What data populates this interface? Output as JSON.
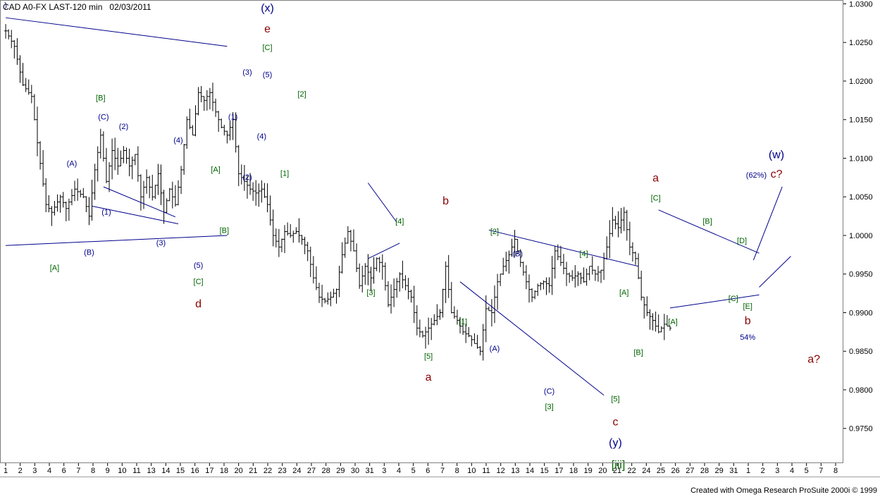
{
  "header": {
    "symbol": "CAD A0-FX LAST-120 min",
    "date": "02/03/2011"
  },
  "footer": {
    "credit": "Created with Omega Research ProSuite 2000i © 1999"
  },
  "chart_data": {
    "type": "bar",
    "title": "CAD A0-FX LAST-120 min 02/03/2011",
    "xlabel": "",
    "ylabel": "",
    "ylim": [
      0.9705,
      1.0305
    ],
    "yticks": [
      "1.0300",
      "1.0250",
      "1.0200",
      "1.0150",
      "1.0100",
      "1.0050",
      "1.0000",
      "0.9950",
      "0.9900",
      "0.9850",
      "0.9800",
      "0.9750"
    ],
    "x_tick_labels": [
      "1",
      "2",
      "3",
      "4",
      "6",
      "7",
      "8",
      "9",
      "10",
      "11",
      "13",
      "14",
      "15",
      "16",
      "17",
      "18",
      "20",
      "21",
      "22",
      "23",
      "24",
      "27",
      "28",
      "29",
      "30",
      "31",
      "3",
      "4",
      "5",
      "6",
      "7",
      "8",
      "10",
      "11",
      "12",
      "13",
      "14",
      "15",
      "17",
      "18",
      "19",
      "20",
      "21",
      "22",
      "24",
      "25",
      "26",
      "27",
      "28",
      "29",
      "31",
      "1",
      "2",
      "3",
      "4",
      "5",
      "7",
      "8"
    ],
    "price_path": [
      [
        0,
        1.0265
      ],
      [
        3,
        1.0245
      ],
      [
        6,
        1.0195
      ],
      [
        9,
        1.018
      ],
      [
        11,
        1.012
      ],
      [
        14,
        1.004
      ],
      [
        16,
        1.003
      ],
      [
        19,
        1.005
      ],
      [
        21,
        1.0035
      ],
      [
        24,
        1.006
      ],
      [
        27,
        1.005
      ],
      [
        29,
        1.0025
      ],
      [
        31,
        1.0085
      ],
      [
        33,
        1.013
      ],
      [
        35,
        1.007
      ],
      [
        37,
        1.011
      ],
      [
        39,
        1.009
      ],
      [
        41,
        1.011
      ],
      [
        43,
        1.009
      ],
      [
        45,
        1.0105
      ],
      [
        47,
        1.005
      ],
      [
        49,
        1.0075
      ],
      [
        51,
        1.005
      ],
      [
        53,
        1.008
      ],
      [
        55,
        1.003
      ],
      [
        57,
        1.006
      ],
      [
        59,
        1.004
      ],
      [
        61,
        1.0085
      ],
      [
        63,
        1.015
      ],
      [
        65,
        1.013
      ],
      [
        67,
        1.0185
      ],
      [
        69,
        1.0175
      ],
      [
        71,
        1.0185
      ],
      [
        73,
        1.016
      ],
      [
        75,
        1.014
      ],
      [
        77,
        1.013
      ],
      [
        79,
        1.015
      ],
      [
        81,
        1.008
      ],
      [
        83,
        1.007
      ],
      [
        85,
        1.006
      ],
      [
        87,
        1.0055
      ],
      [
        89,
        1.006
      ],
      [
        91,
        1.004
      ],
      [
        93,
        1.0
      ],
      [
        95,
        0.9985
      ],
      [
        97,
        1.0005
      ],
      [
        99,
        1.0
      ],
      [
        101,
        1.0005
      ],
      [
        103,
        0.9995
      ],
      [
        105,
        0.998
      ],
      [
        107,
        0.9945
      ],
      [
        109,
        0.992
      ],
      [
        111,
        0.9915
      ],
      [
        113,
        0.992
      ],
      [
        115,
        0.993
      ],
      [
        117,
        0.9975
      ],
      [
        119,
        1.0005
      ],
      [
        121,
        0.998
      ],
      [
        123,
        0.9935
      ],
      [
        125,
        0.996
      ],
      [
        127,
        0.9945
      ],
      [
        129,
        0.997
      ],
      [
        131,
        0.996
      ],
      [
        133,
        0.991
      ],
      [
        135,
        0.993
      ],
      [
        137,
        0.995
      ],
      [
        139,
        0.9935
      ],
      [
        141,
        0.992
      ],
      [
        143,
        0.988
      ],
      [
        145,
        0.987
      ],
      [
        147,
        0.988
      ],
      [
        149,
        0.989
      ],
      [
        151,
        0.99
      ],
      [
        153,
        0.996
      ],
      [
        155,
        0.99
      ],
      [
        157,
        0.989
      ],
      [
        159,
        0.9875
      ],
      [
        161,
        0.987
      ],
      [
        163,
        0.986
      ],
      [
        165,
        0.985
      ],
      [
        167,
        0.9905
      ],
      [
        169,
        0.99
      ],
      [
        171,
        0.994
      ],
      [
        173,
        0.996
      ],
      [
        175,
        0.9975
      ],
      [
        177,
        0.9995
      ],
      [
        179,
        0.9965
      ],
      [
        181,
        0.994
      ],
      [
        183,
        0.992
      ],
      [
        185,
        0.9935
      ],
      [
        187,
        0.994
      ],
      [
        189,
        0.9935
      ],
      [
        191,
        0.998
      ],
      [
        193,
        0.9965
      ],
      [
        195,
        0.995
      ],
      [
        197,
        0.9945
      ],
      [
        199,
        0.995
      ],
      [
        201,
        0.994
      ],
      [
        203,
        0.996
      ],
      [
        205,
        0.995
      ],
      [
        207,
        0.9955
      ],
      [
        209,
        0.9985
      ],
      [
        211,
        1.002
      ],
      [
        213,
        1.001
      ],
      [
        215,
        1.003
      ],
      [
        217,
        0.9985
      ],
      [
        219,
        0.997
      ],
      [
        221,
        0.992
      ],
      [
        223,
        0.99
      ],
      [
        225,
        0.989
      ],
      [
        227,
        0.9875
      ],
      [
        229,
        0.9885
      ],
      [
        231,
        0.988
      ]
    ],
    "series_extent": {
      "first_index": 0,
      "last_index": 231,
      "x_min_index": -1,
      "x_max_index": 292
    },
    "trendlines": [
      {
        "from": [
          0,
          1.0282
        ],
        "to": [
          77,
          1.0245
        ]
      },
      {
        "from": [
          0,
          0.9987
        ],
        "to": [
          77,
          1.0
        ]
      },
      {
        "from": [
          30,
          1.0038
        ],
        "to": [
          60,
          1.0015
        ]
      },
      {
        "from": [
          34,
          1.0063
        ],
        "to": [
          59,
          1.0024
        ]
      },
      {
        "from": [
          126,
          1.0068
        ],
        "to": [
          136,
          1.0017
        ]
      },
      {
        "from": [
          126,
          0.997
        ],
        "to": [
          137,
          0.999
        ]
      },
      {
        "from": [
          168,
          1.0007
        ],
        "to": [
          220,
          0.996
        ]
      },
      {
        "from": [
          158,
          0.994
        ],
        "to": [
          208,
          0.9793
        ]
      },
      {
        "from": [
          227,
          1.0033
        ],
        "to": [
          262,
          0.9977
        ]
      },
      {
        "from": [
          231,
          0.9906
        ],
        "to": [
          262,
          0.9923
        ]
      },
      {
        "from": [
          260,
          0.9968
        ],
        "to": [
          270,
          1.0063
        ]
      },
      {
        "from": [
          262,
          0.9933
        ],
        "to": [
          273,
          0.9973
        ]
      }
    ],
    "annotations": [
      {
        "text": ")",
        "x": 0,
        "y": 1.0295,
        "color": "#00008b"
      },
      {
        "text": "(x)",
        "x": 91,
        "y": 1.029,
        "color": "#00008b",
        "size": "big"
      },
      {
        "text": "e",
        "x": 91,
        "y": 1.0263,
        "color": "#8b0000",
        "size": "big"
      },
      {
        "text": "[C]",
        "x": 91,
        "y": 1.024,
        "color": "#006400"
      },
      {
        "text": "(3)",
        "x": 84,
        "y": 1.0208,
        "color": "#00008b"
      },
      {
        "text": "(5)",
        "x": 91,
        "y": 1.0205,
        "color": "#00008b"
      },
      {
        "text": "[2]",
        "x": 103,
        "y": 1.018,
        "color": "#006400"
      },
      {
        "text": "[B]",
        "x": 33,
        "y": 1.0175,
        "color": "#006400"
      },
      {
        "text": "(C)",
        "x": 34,
        "y": 1.015,
        "color": "#00008b"
      },
      {
        "text": "(2)",
        "x": 41,
        "y": 1.0138,
        "color": "#00008b"
      },
      {
        "text": "(1)",
        "x": 79,
        "y": 1.015,
        "color": "#00008b"
      },
      {
        "text": "(4)",
        "x": 60,
        "y": 1.012,
        "color": "#00008b"
      },
      {
        "text": "(4)",
        "x": 89,
        "y": 1.0125,
        "color": "#00008b"
      },
      {
        "text": "(A)",
        "x": 23,
        "y": 1.009,
        "color": "#00008b"
      },
      {
        "text": "[A]",
        "x": 73,
        "y": 1.0082,
        "color": "#006400"
      },
      {
        "text": "[1]",
        "x": 97,
        "y": 1.0077,
        "color": "#006400"
      },
      {
        "text": "(2)",
        "x": 84,
        "y": 1.0072,
        "color": "#00008b"
      },
      {
        "text": "(1)",
        "x": 35,
        "y": 1.0027,
        "color": "#00008b"
      },
      {
        "text": "[B]",
        "x": 76,
        "y": 1.0003,
        "color": "#006400"
      },
      {
        "text": "(3)",
        "x": 54,
        "y": 0.9987,
        "color": "#00008b"
      },
      {
        "text": "(B)",
        "x": 29,
        "y": 0.9975,
        "color": "#00008b"
      },
      {
        "text": "(5)",
        "x": 67,
        "y": 0.9958,
        "color": "#00008b"
      },
      {
        "text": "[A]",
        "x": 17,
        "y": 0.9955,
        "color": "#006400"
      },
      {
        "text": "[C]",
        "x": 67,
        "y": 0.9937,
        "color": "#006400"
      },
      {
        "text": "d",
        "x": 67,
        "y": 0.9907,
        "color": "#8b0000",
        "size": "big"
      },
      {
        "text": "[4]",
        "x": 137,
        "y": 1.0015,
        "color": "#006400"
      },
      {
        "text": "b",
        "x": 153,
        "y": 1.004,
        "color": "#8b0000",
        "size": "big"
      },
      {
        "text": "[3]",
        "x": 127,
        "y": 0.9923,
        "color": "#006400"
      },
      {
        "text": "[2]",
        "x": 170,
        "y": 1.0002,
        "color": "#006400"
      },
      {
        "text": "(B)",
        "x": 178,
        "y": 0.9973,
        "color": "#00008b"
      },
      {
        "text": "[4]",
        "x": 201,
        "y": 0.9973,
        "color": "#006400"
      },
      {
        "text": "[A]",
        "x": 215,
        "y": 0.9923,
        "color": "#006400"
      },
      {
        "text": "[1]",
        "x": 159,
        "y": 0.9885,
        "color": "#006400"
      },
      {
        "text": "(A)",
        "x": 170,
        "y": 0.985,
        "color": "#00008b"
      },
      {
        "text": "[B]",
        "x": 220,
        "y": 0.9845,
        "color": "#006400"
      },
      {
        "text": "[5]",
        "x": 147,
        "y": 0.984,
        "color": "#006400"
      },
      {
        "text": "a",
        "x": 147,
        "y": 0.9812,
        "color": "#8b0000",
        "size": "big"
      },
      {
        "text": "(C)",
        "x": 189,
        "y": 0.9795,
        "color": "#00008b"
      },
      {
        "text": "[5]",
        "x": 212,
        "y": 0.9785,
        "color": "#006400"
      },
      {
        "text": "[3]",
        "x": 189,
        "y": 0.9775,
        "color": "#006400"
      },
      {
        "text": "c",
        "x": 212,
        "y": 0.9754,
        "color": "#8b0000",
        "size": "big"
      },
      {
        "text": "(y)",
        "x": 212,
        "y": 0.9727,
        "color": "#00008b",
        "size": "big"
      },
      {
        "text": "[iii]",
        "x": 213,
        "y": 0.9698,
        "color": "#006400",
        "size": "big"
      },
      {
        "text": "a",
        "x": 226,
        "y": 1.007,
        "color": "#8b0000",
        "size": "big"
      },
      {
        "text": "[C]",
        "x": 226,
        "y": 1.0045,
        "color": "#006400"
      },
      {
        "text": "[B]",
        "x": 244,
        "y": 1.0015,
        "color": "#006400"
      },
      {
        "text": "[D]",
        "x": 256,
        "y": 0.999,
        "color": "#006400"
      },
      {
        "text": "[C]",
        "x": 253,
        "y": 0.9915,
        "color": "#006400"
      },
      {
        "text": "[E]",
        "x": 258,
        "y": 0.9905,
        "color": "#006400"
      },
      {
        "text": "[A]",
        "x": 232,
        "y": 0.9885,
        "color": "#006400"
      },
      {
        "text": "b",
        "x": 258,
        "y": 0.9885,
        "color": "#8b0000",
        "size": "big"
      },
      {
        "text": "54%",
        "x": 258,
        "y": 0.9865,
        "color": "#00008b"
      },
      {
        "text": "(w)",
        "x": 268,
        "y": 1.01,
        "color": "#00008b",
        "size": "big"
      },
      {
        "text": "(62%)",
        "x": 261,
        "y": 1.0075,
        "color": "#00008b"
      },
      {
        "text": "c?",
        "x": 268,
        "y": 1.0075,
        "color": "#8b0000",
        "size": "big"
      },
      {
        "text": "a?",
        "x": 281,
        "y": 0.9835,
        "color": "#8b0000",
        "size": "big"
      }
    ],
    "grid": false,
    "legend": "none"
  }
}
